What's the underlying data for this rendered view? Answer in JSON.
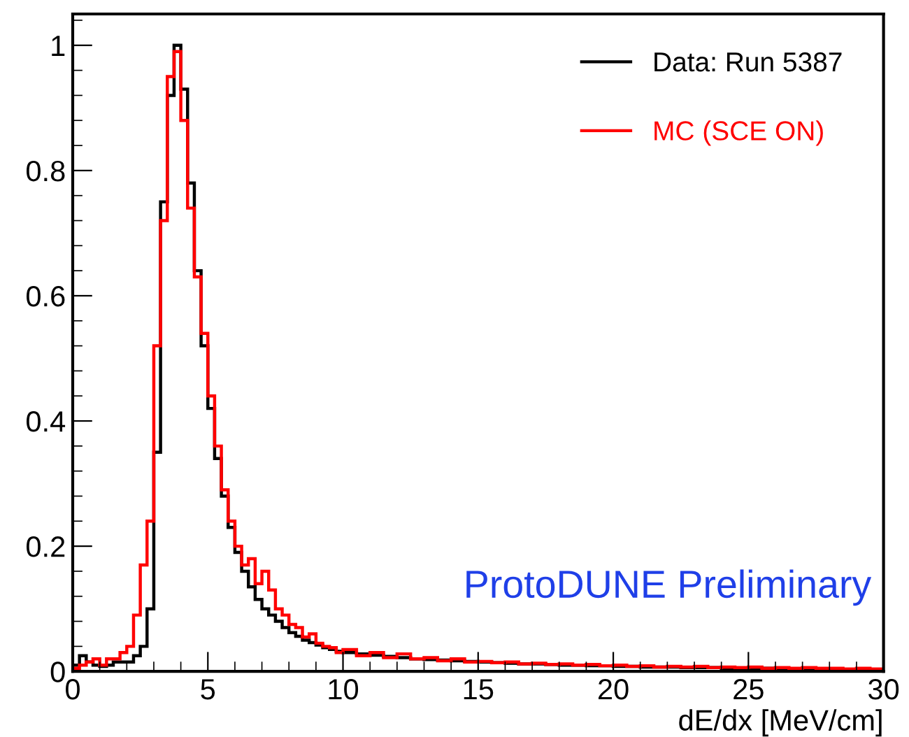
{
  "chart_data": {
    "type": "histogram",
    "xlabel": "dE/dx [MeV/cm]",
    "bins": [
      0,
      0.25,
      0.5,
      0.75,
      1,
      1.25,
      1.5,
      1.75,
      2,
      2.25,
      2.5,
      2.75,
      3,
      3.25,
      3.5,
      3.75,
      4,
      4.25,
      4.5,
      4.75,
      5,
      5.25,
      5.5,
      5.75,
      6,
      6.25,
      6.5,
      6.75,
      7,
      7.25,
      7.5,
      7.75,
      8,
      8.25,
      8.5,
      8.75,
      9,
      9.25,
      9.5,
      9.75,
      10,
      10.5,
      11,
      11.5,
      12,
      12.5,
      13,
      13.5,
      14,
      14.5,
      15,
      15.5,
      16,
      16.5,
      17,
      17.5,
      18,
      18.5,
      19,
      19.5,
      20,
      20.5,
      21,
      21.5,
      22,
      22.5,
      23,
      23.5,
      24,
      24.5,
      25,
      25.5,
      26,
      26.5,
      27,
      27.5,
      28,
      28.5,
      29,
      29.5,
      30
    ],
    "series": [
      {
        "name": "Data: Run 5387",
        "color": "#000000",
        "values": [
          0.01,
          0.025,
          0.015,
          0.01,
          0.008,
          0.01,
          0.015,
          0.015,
          0.015,
          0.025,
          0.04,
          0.1,
          0.35,
          0.75,
          0.92,
          1.0,
          0.93,
          0.78,
          0.64,
          0.52,
          0.42,
          0.34,
          0.28,
          0.23,
          0.19,
          0.16,
          0.135,
          0.115,
          0.1,
          0.09,
          0.08,
          0.07,
          0.062,
          0.056,
          0.05,
          0.046,
          0.042,
          0.038,
          0.035,
          0.032,
          0.03,
          0.028,
          0.026,
          0.024,
          0.022,
          0.02,
          0.019,
          0.018,
          0.017,
          0.016,
          0.015,
          0.014,
          0.013,
          0.012,
          0.012,
          0.011,
          0.01,
          0.01,
          0.009,
          0.009,
          0.008,
          0.008,
          0.007,
          0.007,
          0.007,
          0.006,
          0.006,
          0.006,
          0.005,
          0.005,
          0.005,
          0.005,
          0.004,
          0.004,
          0.004,
          0.004,
          0.003,
          0.003,
          0.003,
          0.003
        ]
      },
      {
        "name": "MC (SCE ON)",
        "color": "#ff0000",
        "values": [
          0.005,
          0.01,
          0.015,
          0.02,
          0.01,
          0.02,
          0.02,
          0.03,
          0.04,
          0.09,
          0.17,
          0.24,
          0.52,
          0.72,
          0.95,
          0.99,
          0.88,
          0.74,
          0.63,
          0.54,
          0.44,
          0.36,
          0.29,
          0.24,
          0.2,
          0.17,
          0.18,
          0.14,
          0.16,
          0.13,
          0.1,
          0.09,
          0.075,
          0.07,
          0.055,
          0.06,
          0.045,
          0.04,
          0.038,
          0.03,
          0.035,
          0.025,
          0.03,
          0.022,
          0.028,
          0.02,
          0.022,
          0.017,
          0.02,
          0.015,
          0.016,
          0.014,
          0.015,
          0.012,
          0.013,
          0.011,
          0.012,
          0.01,
          0.011,
          0.009,
          0.01,
          0.008,
          0.009,
          0.007,
          0.008,
          0.007,
          0.008,
          0.006,
          0.007,
          0.006,
          0.007,
          0.005,
          0.006,
          0.005,
          0.006,
          0.005,
          0.005,
          0.004,
          0.005,
          0.004
        ]
      }
    ],
    "xlim": [
      0,
      30
    ],
    "xticks": [
      0,
      5,
      10,
      15,
      20,
      25,
      30
    ],
    "ylim": [
      0,
      1.05
    ],
    "yticks": [
      0,
      0.2,
      0.4,
      0.6,
      0.8,
      1
    ],
    "grid": false,
    "legend": "top right",
    "annotations": [
      "ProtoDUNE Preliminary"
    ]
  }
}
